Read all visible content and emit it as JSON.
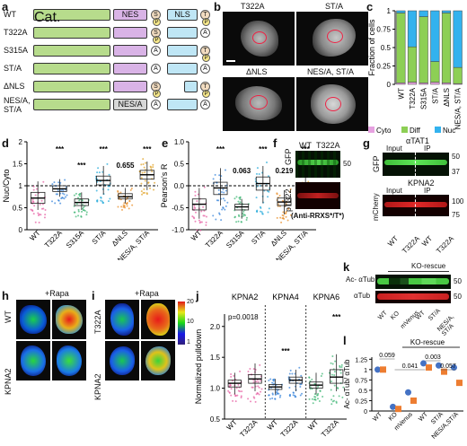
{
  "panels": {
    "a": {
      "label": "a",
      "rows": [
        "WT",
        "T322A",
        "S315A",
        "ST/A",
        "ΔNLS",
        "NES/A,\nST/A"
      ],
      "domain_labels": {
        "cat": "Cat. domain",
        "nes": "NES",
        "nls": "NLS",
        "nes_mut": "NES/A"
      },
      "site_labels": {
        "s": "S",
        "t": "T",
        "p": "P",
        "a": "A"
      }
    },
    "b": {
      "label": "b",
      "titles": [
        "T322A",
        "ST/A",
        "ΔNLS",
        "NES/A, ST/A"
      ]
    },
    "c": {
      "label": "c",
      "ylabel": "Fraction of cells",
      "yticks": [
        "0",
        "0.25",
        "0.5",
        "0.75",
        "1"
      ],
      "legend": [
        "Cyto",
        "Diff",
        "Nuc"
      ]
    },
    "d": {
      "label": "d",
      "ylabel": "Nuc/Cyto",
      "yticks": [
        "0",
        "0.5",
        "1",
        "1.5",
        "2"
      ],
      "annotations": [
        "***",
        "***",
        "***",
        "0.655",
        "***"
      ]
    },
    "e": {
      "label": "e",
      "ylabel": "Pearson's R",
      "yticks": [
        "-1.0",
        "-0.5",
        "0.0",
        "0.5",
        "1.0"
      ],
      "annotations": [
        "***",
        "0.063",
        "***",
        "0.219",
        "***"
      ]
    },
    "f": {
      "label": "f",
      "lanes": [
        "WT",
        "T322A"
      ],
      "rows": [
        "GFP",
        "pT322"
      ],
      "marker": "50",
      "footer": "(Anti-RRXS*/T*)"
    },
    "g": {
      "label": "g",
      "blots": [
        "αTAT1",
        "KPNA2"
      ],
      "rows": [
        "GFP",
        "mCherry"
      ],
      "groups": [
        "Input",
        "IP"
      ],
      "markers_top": [
        "50",
        "37"
      ],
      "markers_bottom": [
        "100",
        "75"
      ],
      "lanes": [
        "WT",
        "T322A",
        "WT",
        "T322A"
      ]
    },
    "h": {
      "label": "h",
      "rows": [
        "WT",
        "KPNA2"
      ],
      "cond": "+Rapa"
    },
    "i": {
      "label": "i",
      "rows": [
        "T322A",
        "KPNA2"
      ],
      "cond": "+Rapa",
      "colorbar": [
        "20",
        "10",
        "1"
      ]
    },
    "j": {
      "label": "j",
      "ylabel": "Normalized pulldown",
      "yticks": [
        "0.5",
        "1.0",
        "1.5",
        "2.0"
      ],
      "groups": [
        "KPNA2",
        "KPNA4",
        "KPNA6"
      ],
      "annotations": [
        "p=0.0018",
        "***",
        "***"
      ],
      "lanes": [
        "WT",
        "T322A",
        "WT",
        "T322A",
        "WT",
        "T322A"
      ]
    },
    "k": {
      "label": "k",
      "rows": [
        "Ac- αTub",
        "αTub"
      ],
      "marker": "50",
      "header": "KO-rescue",
      "lanes": [
        "WT",
        "KO",
        "mVenus",
        "WT",
        "ST/A",
        "NES/A, ST/A"
      ]
    },
    "l": {
      "label": "l",
      "ylabel": "Ac- αTub/ αTub",
      "yticks": [
        "0",
        "0.25",
        "0.5",
        "0.75",
        "1",
        "1.25"
      ],
      "header": "KO-rescue",
      "pvals": [
        "0.059",
        "0.041",
        "0.003",
        "0.057"
      ],
      "lanes": [
        "WT",
        "KO",
        "mVenus",
        "WT",
        "ST/A",
        "NES/A,ST/A"
      ]
    }
  },
  "chart_data": [
    {
      "panel": "c",
      "type": "bar",
      "stacked": true,
      "categories": [
        "WT",
        "T322A",
        "S315A",
        "ST/A",
        "ΔNLS",
        "NES/A, ST/A"
      ],
      "series": [
        {
          "name": "Cyto",
          "color": "#e6a1e0",
          "values": [
            0.02,
            0.03,
            0.02,
            0.03,
            0.02,
            0.01
          ]
        },
        {
          "name": "Diff",
          "color": "#8dcf55",
          "values": [
            0.95,
            0.48,
            0.9,
            0.28,
            0.95,
            0.22
          ]
        },
        {
          "name": "Nuc",
          "color": "#33b2ee",
          "values": [
            0.03,
            0.49,
            0.08,
            0.69,
            0.03,
            0.77
          ]
        }
      ],
      "ylim": [
        0,
        1
      ]
    },
    {
      "panel": "d",
      "type": "box",
      "categories": [
        "WT",
        "T322A",
        "S315A",
        "ST/A",
        "ΔNLS",
        "NES/A, ST/A"
      ],
      "colors": [
        "#e65aa0",
        "#2f7fd8",
        "#38b36f",
        "#1ca7d9",
        "#e8891e",
        "#e0a020"
      ],
      "boxes": [
        [
          0.45,
          0.6,
          0.72,
          0.85,
          1.1
        ],
        [
          0.75,
          0.87,
          0.93,
          1.0,
          1.15
        ],
        [
          0.45,
          0.55,
          0.62,
          0.7,
          0.85
        ],
        [
          0.8,
          1.02,
          1.12,
          1.22,
          1.45
        ],
        [
          0.6,
          0.7,
          0.75,
          0.82,
          0.95
        ],
        [
          0.9,
          1.15,
          1.25,
          1.35,
          1.55
        ]
      ],
      "ylim": [
        0,
        2
      ]
    },
    {
      "panel": "e",
      "type": "box",
      "categories": [
        "WT",
        "T322A",
        "S315A",
        "ST/A",
        "ΔNLS",
        "NES/A, ST/A"
      ],
      "colors": [
        "#e65aa0",
        "#2f7fd8",
        "#38b36f",
        "#1ca7d9",
        "#e8891e",
        "#e0a020"
      ],
      "boxes": [
        [
          -0.75,
          -0.55,
          -0.42,
          -0.3,
          -0.05
        ],
        [
          -0.45,
          -0.2,
          -0.05,
          0.08,
          0.4
        ],
        [
          -0.75,
          -0.55,
          -0.48,
          -0.42,
          -0.3
        ],
        [
          -0.4,
          -0.1,
          0.05,
          0.2,
          0.45
        ],
        [
          -0.65,
          -0.45,
          -0.37,
          -0.28,
          -0.1
        ],
        [
          0.05,
          0.3,
          0.4,
          0.5,
          0.7
        ]
      ],
      "ylim": [
        -1,
        1
      ]
    },
    {
      "panel": "j",
      "type": "box",
      "categories": [
        "WT",
        "T322A",
        "WT",
        "T322A",
        "WT",
        "T322A"
      ],
      "colors": [
        "#e65aa0",
        "#e65aa0",
        "#2f7fd8",
        "#2f7fd8",
        "#38b36f",
        "#38b36f"
      ],
      "boxes": [
        [
          0.9,
          1.02,
          1.08,
          1.13,
          1.25
        ],
        [
          0.95,
          1.08,
          1.15,
          1.22,
          1.4
        ],
        [
          0.9,
          0.98,
          1.02,
          1.06,
          1.15
        ],
        [
          0.95,
          1.08,
          1.13,
          1.18,
          1.3
        ],
        [
          0.9,
          1.0,
          1.05,
          1.1,
          1.25
        ],
        [
          0.95,
          1.08,
          1.18,
          1.3,
          1.55
        ]
      ],
      "ylim": [
        0.5,
        2.2
      ]
    },
    {
      "panel": "l",
      "type": "scatter",
      "categories": [
        "WT",
        "KO",
        "mVenus",
        "WT",
        "ST/A",
        "NES/A,ST/A"
      ],
      "series": [
        {
          "name": "",
          "color": "#4472c4",
          "values": [
            1.0,
            0.1,
            0.45,
            1.15,
            1.1,
            1.05
          ]
        },
        {
          "name": "",
          "color": "#ed7d31",
          "values": [
            1.0,
            0.05,
            0.25,
            1.05,
            0.95,
            0.68
          ]
        }
      ],
      "ylim": [
        0,
        1.3
      ]
    }
  ]
}
